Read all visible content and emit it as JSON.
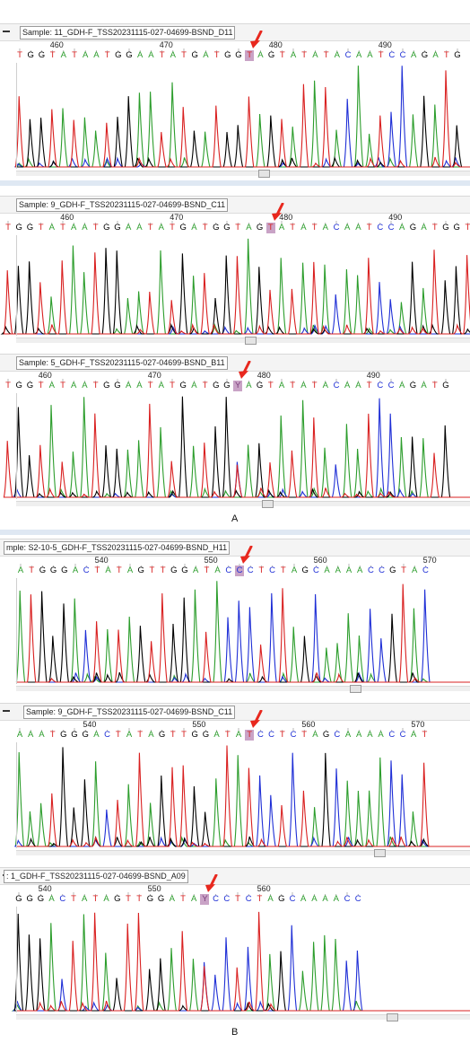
{
  "figure_labels": [
    "A",
    "B"
  ],
  "colors": {
    "A": "#2c9d2c",
    "C": "#1f2fd6",
    "G": "#000000",
    "T": "#d92020",
    "N": "#7a3b7a",
    "arrow": "#e8281e",
    "highlight": "#c9a3c6"
  },
  "panels": [
    {
      "sample": "Sample: 11_GDH-F_TSS20231115-027-04699-BSND_D11",
      "ruler": [
        "460",
        "470",
        "480",
        "490"
      ],
      "bases": "TGGTATAATGGAATATGATGGTAGTATATACAATCCAGATG",
      "highlight_index": 21,
      "show_marker": true
    },
    {
      "sample": "Sample: 9_GDH-F_TSS20231115-027-04699-BSND_C11",
      "ruler": [
        "460",
        "470",
        "480",
        "490"
      ],
      "bases": "TGGTATAATGGAATATGATGGTAGTATATACAATCCAGATGGTA",
      "highlight_index": 24,
      "show_marker": false
    },
    {
      "sample": "Sample: 5_GDH-F_TSS20231115-027-04699-BSND_B11",
      "ruler": [
        "460",
        "470",
        "480",
        "490"
      ],
      "bases": "TGGTATAATGGAATATGATGGYAGTATATACAATCCAGATG",
      "highlight_index": 21,
      "show_marker": false
    },
    {
      "sample": "mple: S2-10-5_GDH-F_TSS20231115-027-04699-BSND_H11",
      "ruler": [
        "540",
        "550",
        "560",
        "570"
      ],
      "bases": "ATGGGACTATAGTTGGATACCCTCTAGCAAAACCGTAC",
      "highlight_index": 20,
      "show_marker": false
    },
    {
      "sample": "Sample: 9_GDH-F_TSS20231115-027-04699-BSND_C11",
      "ruler": [
        "540",
        "550",
        "560",
        "570"
      ],
      "bases": "AAATGGGACTATAGTTGGATATCCTCTAGCAAAACCAT",
      "highlight_index": 21,
      "show_marker": true
    },
    {
      "sample": ": 1_GDH-F_TSS20231115-027-04699-BSND_A09",
      "ruler": [
        "540",
        "550",
        "560"
      ],
      "bases": "GGGACTATAGTTGGATAYCCTCTAGCAAAACC",
      "highlight_index": 17,
      "show_marker": true
    }
  ]
}
